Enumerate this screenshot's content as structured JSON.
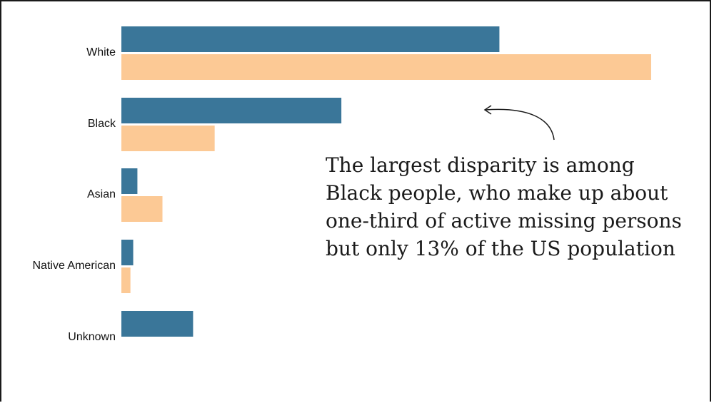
{
  "colors": {
    "series_1": "#3a7699",
    "series_2": "#fcc995",
    "text": "#111111",
    "frame": "#1a1a1a"
  },
  "chart_data": {
    "type": "bar",
    "orientation": "horizontal",
    "categories": [
      "White",
      "Black",
      "Asian",
      "Native American",
      "Unknown"
    ],
    "series": [
      {
        "values": [
          54.3,
          31.6,
          2.3,
          1.7,
          10.3
        ]
      },
      {
        "values": [
          76.1,
          13.4,
          5.9,
          1.3,
          0
        ]
      }
    ],
    "xlim": [
      0,
      80
    ],
    "grid": false,
    "legend": "none",
    "annotation": "The largest disparity is among Black people, who make up about one-third of active missing persons but only 13% of the US population"
  }
}
